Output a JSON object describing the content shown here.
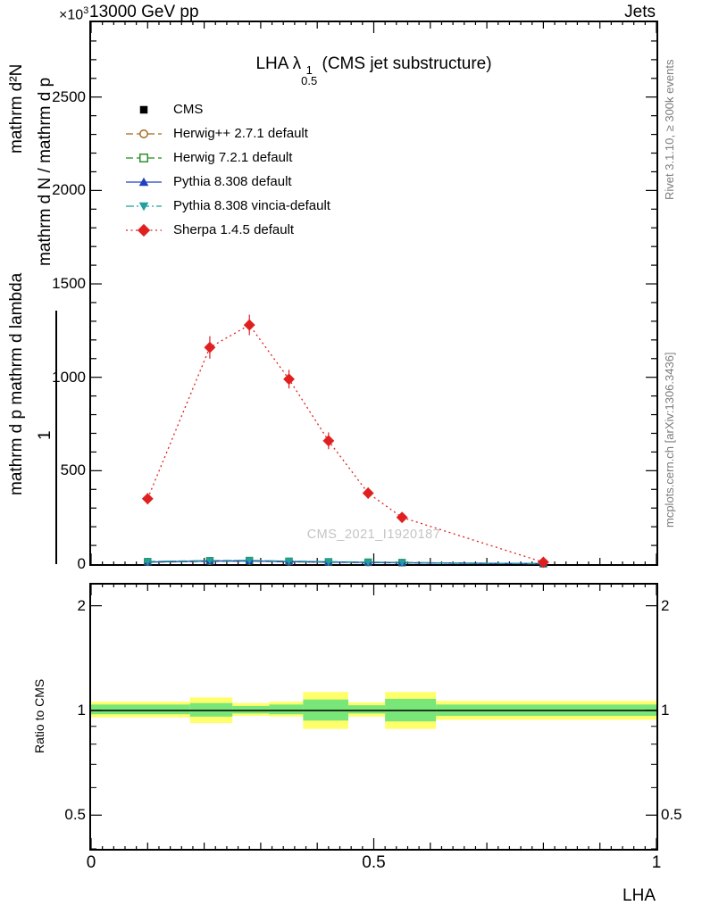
{
  "header": {
    "scale_prefix": "×10",
    "scale_exp": "3",
    "title_left": "13000 GeV pp",
    "title_right": "Jets"
  },
  "right_margin": {
    "rivet": "Rivet 3.1.10, ≥ 300k events",
    "mcplots": "mcplots.cern.ch [arXiv:1306.3436]"
  },
  "left_margin": {
    "ylabel_outer_top": "mathrm d²N",
    "ylabel_outer_bottom": "mathrm d p mathrm d lambda",
    "ylabel_inner_numerator": "1",
    "ylabel_inner": "mathrm d N / mathrm d p",
    "ratio_ylabel": "Ratio to CMS"
  },
  "plot_title": {
    "prefix": "LHA ",
    "symbol": "λ",
    "sup": "1",
    "sub": "0.5",
    "suffix": " (CMS jet substructure)"
  },
  "watermark": "CMS_2021_I1920187",
  "x_axis_label": "LHA",
  "colors": {
    "band_yellow": "#ffff6b",
    "band_green": "#79e679",
    "watermark_gray": "#c4c4c4"
  },
  "chart_data": [
    {
      "id": "main",
      "type": "line",
      "title": "LHA λ^1_0.5 (CMS jet substructure)",
      "xlabel": "LHA",
      "ylabel": "mathrm d²N / mathrm d p mathrm d lambda (1 / mathrm d N / mathrm d p)",
      "y_unit_multiplier": "×10³",
      "xlim": [
        0,
        1
      ],
      "ylim": [
        0,
        2900
      ],
      "xticks": [
        0,
        0.5,
        1
      ],
      "yticks": [
        0,
        500,
        1000,
        1500,
        2000,
        2500
      ],
      "x": [
        0.1,
        0.21,
        0.28,
        0.35,
        0.42,
        0.49,
        0.55,
        0.8
      ],
      "series": [
        {
          "name": "CMS",
          "color": "#000000",
          "line": "none",
          "marker": "square",
          "values": [
            12,
            17,
            18,
            14,
            12,
            10,
            8,
            2
          ]
        },
        {
          "name": "Herwig++ 2.7.1 default",
          "color": "#a5641c",
          "line": "dashed",
          "marker": "circle-open",
          "values": [
            10,
            15,
            16,
            12,
            10,
            8,
            7,
            2
          ]
        },
        {
          "name": "Herwig 7.2.1 default",
          "color": "#228b22",
          "line": "dashed",
          "marker": "square-open",
          "values": [
            13,
            18,
            19,
            15,
            12,
            10,
            8,
            2
          ]
        },
        {
          "name": "Pythia 8.308 default",
          "color": "#2040c0",
          "line": "solid",
          "marker": "triangle-up",
          "values": [
            11,
            16,
            17,
            13,
            11,
            9,
            7,
            2
          ]
        },
        {
          "name": "Pythia 8.308 vincia-default",
          "color": "#20a0a0",
          "line": "dashdot",
          "marker": "triangle-down",
          "values": [
            14,
            19,
            20,
            16,
            13,
            11,
            9,
            2
          ]
        },
        {
          "name": "Sherpa 1.4.5 default",
          "color": "#e02020",
          "line": "dotted",
          "marker": "diamond",
          "values": [
            350,
            1160,
            1280,
            990,
            660,
            380,
            250,
            10
          ],
          "yerr": [
            30,
            60,
            55,
            50,
            45,
            30,
            22,
            6
          ]
        }
      ],
      "legend_position": "upper-left",
      "grid": false
    },
    {
      "id": "ratio",
      "type": "band",
      "ylabel": "Ratio to CMS",
      "yscale": "log",
      "ylim": [
        0.4,
        2.3
      ],
      "yticks": [
        0.5,
        1,
        2
      ],
      "yminor": [
        0.4,
        0.6,
        0.7,
        0.8,
        0.9
      ],
      "center_line": 1.0,
      "bands": [
        {
          "x0": 0.0,
          "x1": 0.175,
          "ylo": 0.955,
          "yhi": 1.06,
          "glo": 0.975,
          "ghi": 1.04
        },
        {
          "x0": 0.175,
          "x1": 0.25,
          "ylo": 0.92,
          "yhi": 1.09,
          "glo": 0.96,
          "ghi": 1.05
        },
        {
          "x0": 0.25,
          "x1": 0.315,
          "ylo": 0.965,
          "yhi": 1.05,
          "glo": 0.98,
          "ghi": 1.03
        },
        {
          "x0": 0.315,
          "x1": 0.375,
          "ylo": 0.96,
          "yhi": 1.06,
          "glo": 0.975,
          "ghi": 1.04
        },
        {
          "x0": 0.375,
          "x1": 0.455,
          "ylo": 0.885,
          "yhi": 1.13,
          "glo": 0.935,
          "ghi": 1.075
        },
        {
          "x0": 0.455,
          "x1": 0.52,
          "ylo": 0.96,
          "yhi": 1.055,
          "glo": 0.98,
          "ghi": 1.035
        },
        {
          "x0": 0.52,
          "x1": 0.61,
          "ylo": 0.885,
          "yhi": 1.13,
          "glo": 0.93,
          "ghi": 1.08
        },
        {
          "x0": 0.61,
          "x1": 1.0,
          "ylo": 0.94,
          "yhi": 1.065,
          "glo": 0.965,
          "ghi": 1.04
        }
      ]
    }
  ]
}
